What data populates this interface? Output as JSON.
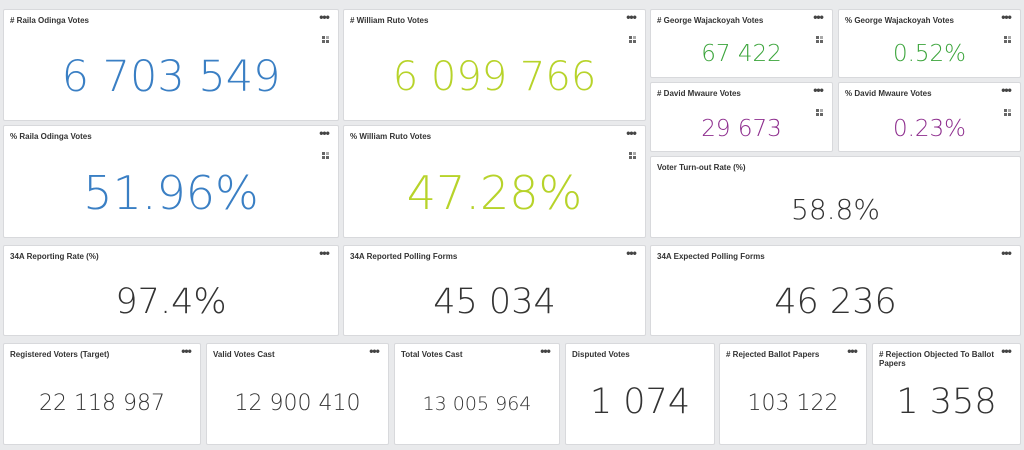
{
  "colors": {
    "raila": "#3a7fc4",
    "ruto": "#b7d32a",
    "george": "#3ca53c",
    "david": "#8e2e8e",
    "neutral": "#333333"
  },
  "menu_glyph": "•••",
  "cards": {
    "raila_votes": {
      "title": "# Raila Odinga Votes",
      "value": "6 703 549"
    },
    "ruto_votes": {
      "title": "# William Ruto Votes",
      "value": "6 099 766"
    },
    "george_votes": {
      "title": "# George Wajackoyah Votes",
      "value": "67 422"
    },
    "george_pct": {
      "title": "% George Wajackoyah Votes",
      "value": "0.52%"
    },
    "david_votes": {
      "title": "# David Mwaure Votes",
      "value": "29 673"
    },
    "david_pct": {
      "title": "% David Mwaure Votes",
      "value": "0.23%"
    },
    "raila_pct": {
      "title": "% Raila Odinga Votes",
      "value": "51.96%"
    },
    "ruto_pct": {
      "title": "% William Ruto Votes",
      "value": "47.28%"
    },
    "turnout": {
      "title": "Voter Turn-out Rate (%)",
      "value": "58.8%"
    },
    "reporting_rate": {
      "title": "34A Reporting Rate (%)",
      "value": "97.4%"
    },
    "reported_forms": {
      "title": "34A Reported Polling Forms",
      "value": "45 034"
    },
    "expected_forms": {
      "title": "34A Expected Polling Forms",
      "value": "46 236"
    },
    "registered": {
      "title": "Registered Voters (Target)",
      "value": "22 118 987"
    },
    "valid_cast": {
      "title": "Valid Votes Cast",
      "value": "12 900 410"
    },
    "total_cast": {
      "title": "Total Votes Cast",
      "value": "13 005 964"
    },
    "disputed": {
      "title": "Disputed Votes",
      "value": "1 074"
    },
    "rejected": {
      "title": "# Rejected Ballot Papers",
      "value": "103 122"
    },
    "rejection_objected": {
      "title": "# Rejection Objected To Ballot Papers",
      "value": "1 358"
    }
  }
}
